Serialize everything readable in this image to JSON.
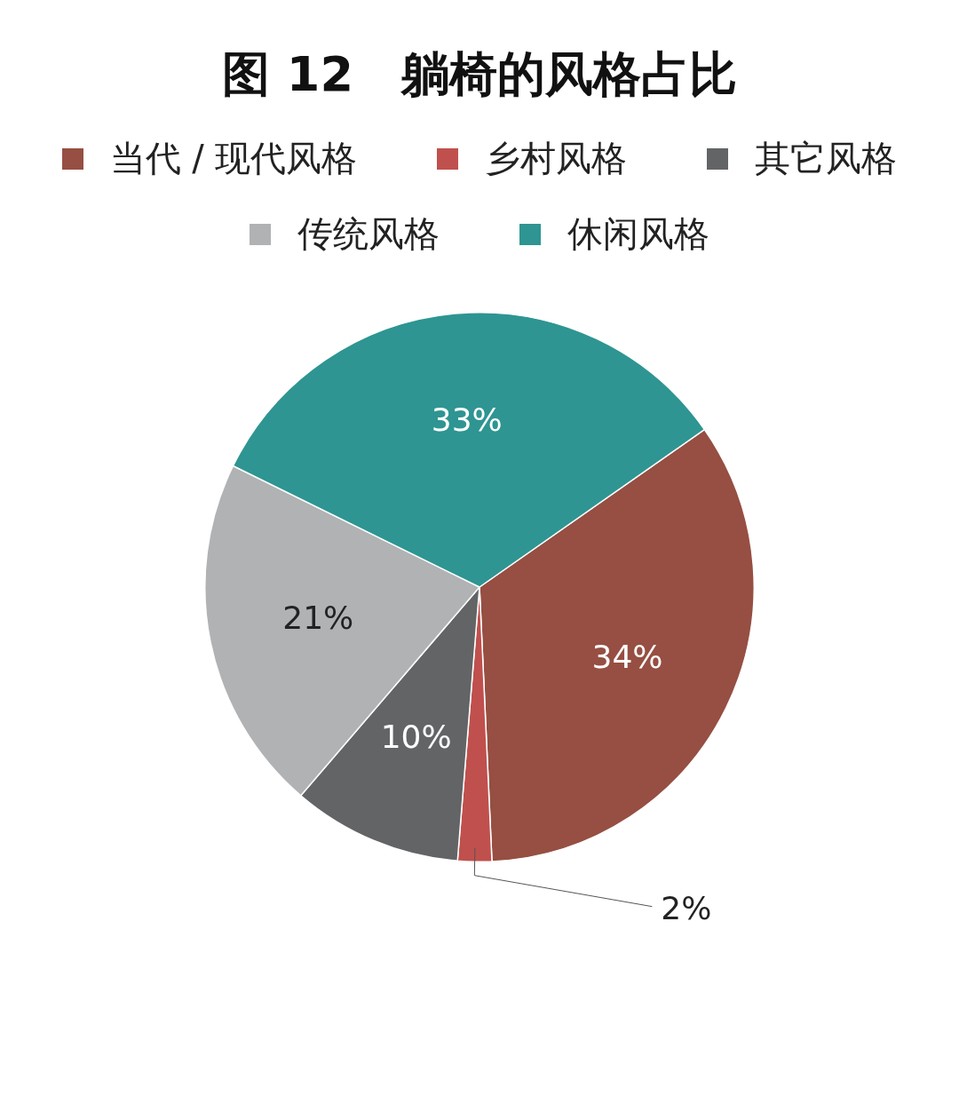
{
  "chart_data": {
    "type": "pie",
    "title": "图 12　躺椅的风格占比",
    "categories": [
      "当代 / 现代风格",
      "乡村风格",
      "其它风格",
      "传统风格",
      "休闲风格"
    ],
    "values": [
      34,
      2,
      10,
      21,
      33
    ],
    "value_labels": [
      "34%",
      "2%",
      "10%",
      "21%",
      "33%"
    ],
    "colors": [
      "#964f42",
      "#c0504d",
      "#636466",
      "#b1b2b3",
      "#2e9592"
    ],
    "legend": "top"
  }
}
